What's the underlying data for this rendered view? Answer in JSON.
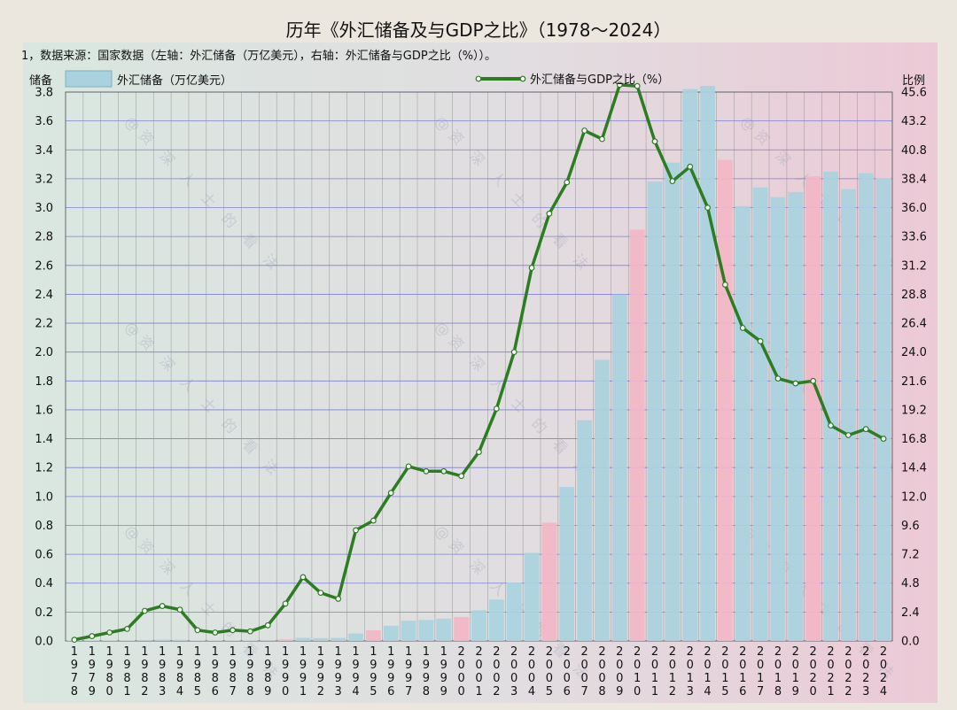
{
  "chart_data": {
    "type": "bar",
    "title": "历年《外汇储备及与GDP之比》（1978～2024）",
    "subtitle": "1，数据来源：国家数据（左轴：外汇储备（万亿美元），右轴：外汇储备与GDP之比（%））。",
    "ylabel": "储备",
    "y2label": "比例",
    "ylim": [
      0,
      3.8
    ],
    "y2lim": [
      0,
      45.6
    ],
    "yticks": [
      "0.0",
      "0.2",
      "0.4",
      "0.6",
      "0.8",
      "1.0",
      "1.2",
      "1.4",
      "1.6",
      "1.8",
      "2.0",
      "2.2",
      "2.4",
      "2.6",
      "2.8",
      "3.0",
      "3.2",
      "3.4",
      "3.6",
      "3.8"
    ],
    "y2ticks": [
      "0.0",
      "2.4",
      "4.8",
      "7.2",
      "9.6",
      "12.0",
      "14.4",
      "16.8",
      "19.2",
      "21.6",
      "24.0",
      "26.4",
      "28.8",
      "31.2",
      "33.6",
      "36.0",
      "38.4",
      "40.8",
      "43.2",
      "45.6"
    ],
    "grid": true,
    "legend_position": "top",
    "categories": [
      "1978",
      "1979",
      "1980",
      "1981",
      "1982",
      "1983",
      "1984",
      "1985",
      "1986",
      "1987",
      "1988",
      "1989",
      "1990",
      "1991",
      "1992",
      "1993",
      "1994",
      "1995",
      "1996",
      "1997",
      "1998",
      "1999",
      "2000",
      "2001",
      "2002",
      "2003",
      "2004",
      "2005",
      "2006",
      "2007",
      "2008",
      "2009",
      "2010",
      "2011",
      "2012",
      "2013",
      "2014",
      "2015",
      "2016",
      "2017",
      "2018",
      "2019",
      "2020",
      "2021",
      "2022",
      "2023",
      "2024"
    ],
    "series": [
      {
        "name": "外汇储备（万亿美元）",
        "kind": "bar",
        "axis": "left",
        "values": [
          0.0002,
          0.0008,
          -0.0013,
          0.0027,
          0.007,
          0.0089,
          0.0082,
          0.0026,
          0.0021,
          0.0029,
          0.0034,
          0.0055,
          0.0111,
          0.0217,
          0.0194,
          0.0212,
          0.0516,
          0.0736,
          0.105,
          0.1399,
          0.145,
          0.1547,
          0.1656,
          0.2122,
          0.2864,
          0.4033,
          0.6099,
          0.8189,
          1.0663,
          1.5282,
          1.946,
          2.3992,
          2.8473,
          3.1811,
          3.3116,
          3.8213,
          3.843,
          3.3304,
          3.0105,
          3.1399,
          3.0727,
          3.1079,
          3.2165,
          3.2502,
          3.1277,
          3.238,
          3.2024
        ],
        "highlight": [
          "1990",
          "1995",
          "2000",
          "2005",
          "2010",
          "2015",
          "2020"
        ],
        "bar_color": "#a9d2de",
        "highlight_color": "#f3b6c6"
      },
      {
        "name": "外汇储备与GDP之比（%）",
        "kind": "line",
        "axis": "right",
        "values": [
          0.1,
          0.4,
          0.7,
          1.0,
          2.5,
          2.9,
          2.6,
          0.9,
          0.7,
          0.9,
          0.8,
          1.3,
          3.1,
          5.3,
          4.0,
          3.5,
          9.2,
          10.0,
          12.3,
          14.5,
          14.1,
          14.1,
          13.7,
          15.7,
          19.3,
          24.0,
          31.0,
          35.5,
          38.1,
          42.4,
          41.7,
          46.2,
          46.1,
          41.5,
          38.2,
          39.4,
          36.0,
          29.6,
          26.0,
          24.9,
          21.8,
          21.4,
          21.6,
          17.9,
          17.1,
          17.6,
          16.8
        ],
        "line_color": "#2c7d22"
      }
    ],
    "watermark": "@资 深 人 士 的 看 法"
  }
}
